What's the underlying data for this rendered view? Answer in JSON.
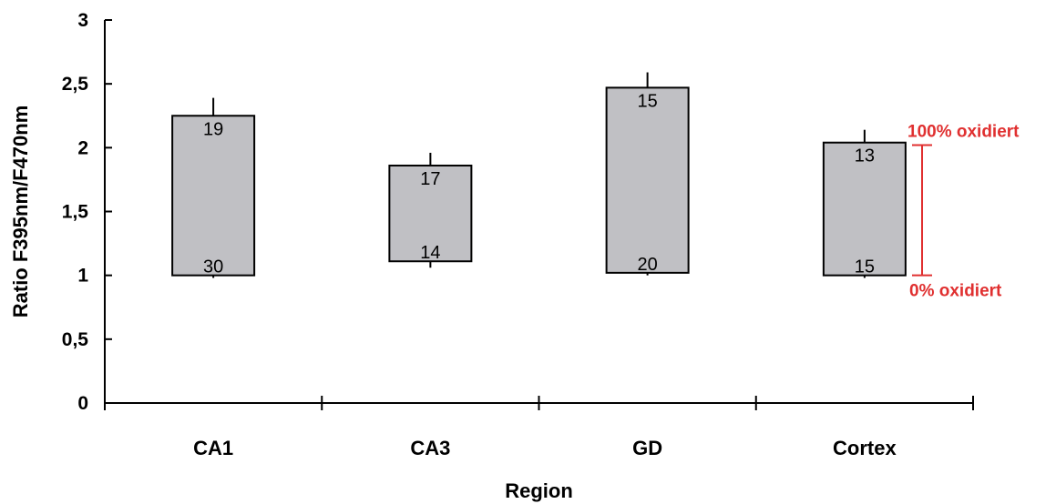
{
  "chart_data": {
    "type": "floating-bar",
    "ylabel": "Ratio F395nm/F470nm",
    "xlabel": "Region",
    "ylim": [
      0,
      3
    ],
    "yticks": [
      0,
      0.5,
      1,
      1.5,
      2,
      2.5,
      3
    ],
    "ytick_labels": [
      "0",
      "0,5",
      "1",
      "1,5",
      "2",
      "2,5",
      "3"
    ],
    "categories": [
      "CA1",
      "CA3",
      "GD",
      "Cortex"
    ],
    "bars": [
      {
        "category": "CA1",
        "bottom": 1.0,
        "top": 2.25,
        "top_error": 0.14,
        "bottom_error": 0.02,
        "n_top": "19",
        "n_bottom": "30"
      },
      {
        "category": "CA3",
        "bottom": 1.11,
        "top": 1.86,
        "top_error": 0.1,
        "bottom_error": 0.05,
        "n_top": "17",
        "n_bottom": "14"
      },
      {
        "category": "GD",
        "bottom": 1.02,
        "top": 2.47,
        "top_error": 0.12,
        "bottom_error": 0.02,
        "n_top": "15",
        "n_bottom": "20"
      },
      {
        "category": "Cortex",
        "bottom": 1.0,
        "top": 2.04,
        "top_error": 0.1,
        "bottom_error": 0.02,
        "n_top": "13",
        "n_bottom": "15"
      }
    ],
    "bar_color": "#c0c0c4",
    "annotation": {
      "top_label": "100% oxidiert",
      "bottom_label": "0% oxidiert",
      "top_value": 2.02,
      "bottom_value": 1.0,
      "color": "#e03030"
    },
    "grid": false
  }
}
